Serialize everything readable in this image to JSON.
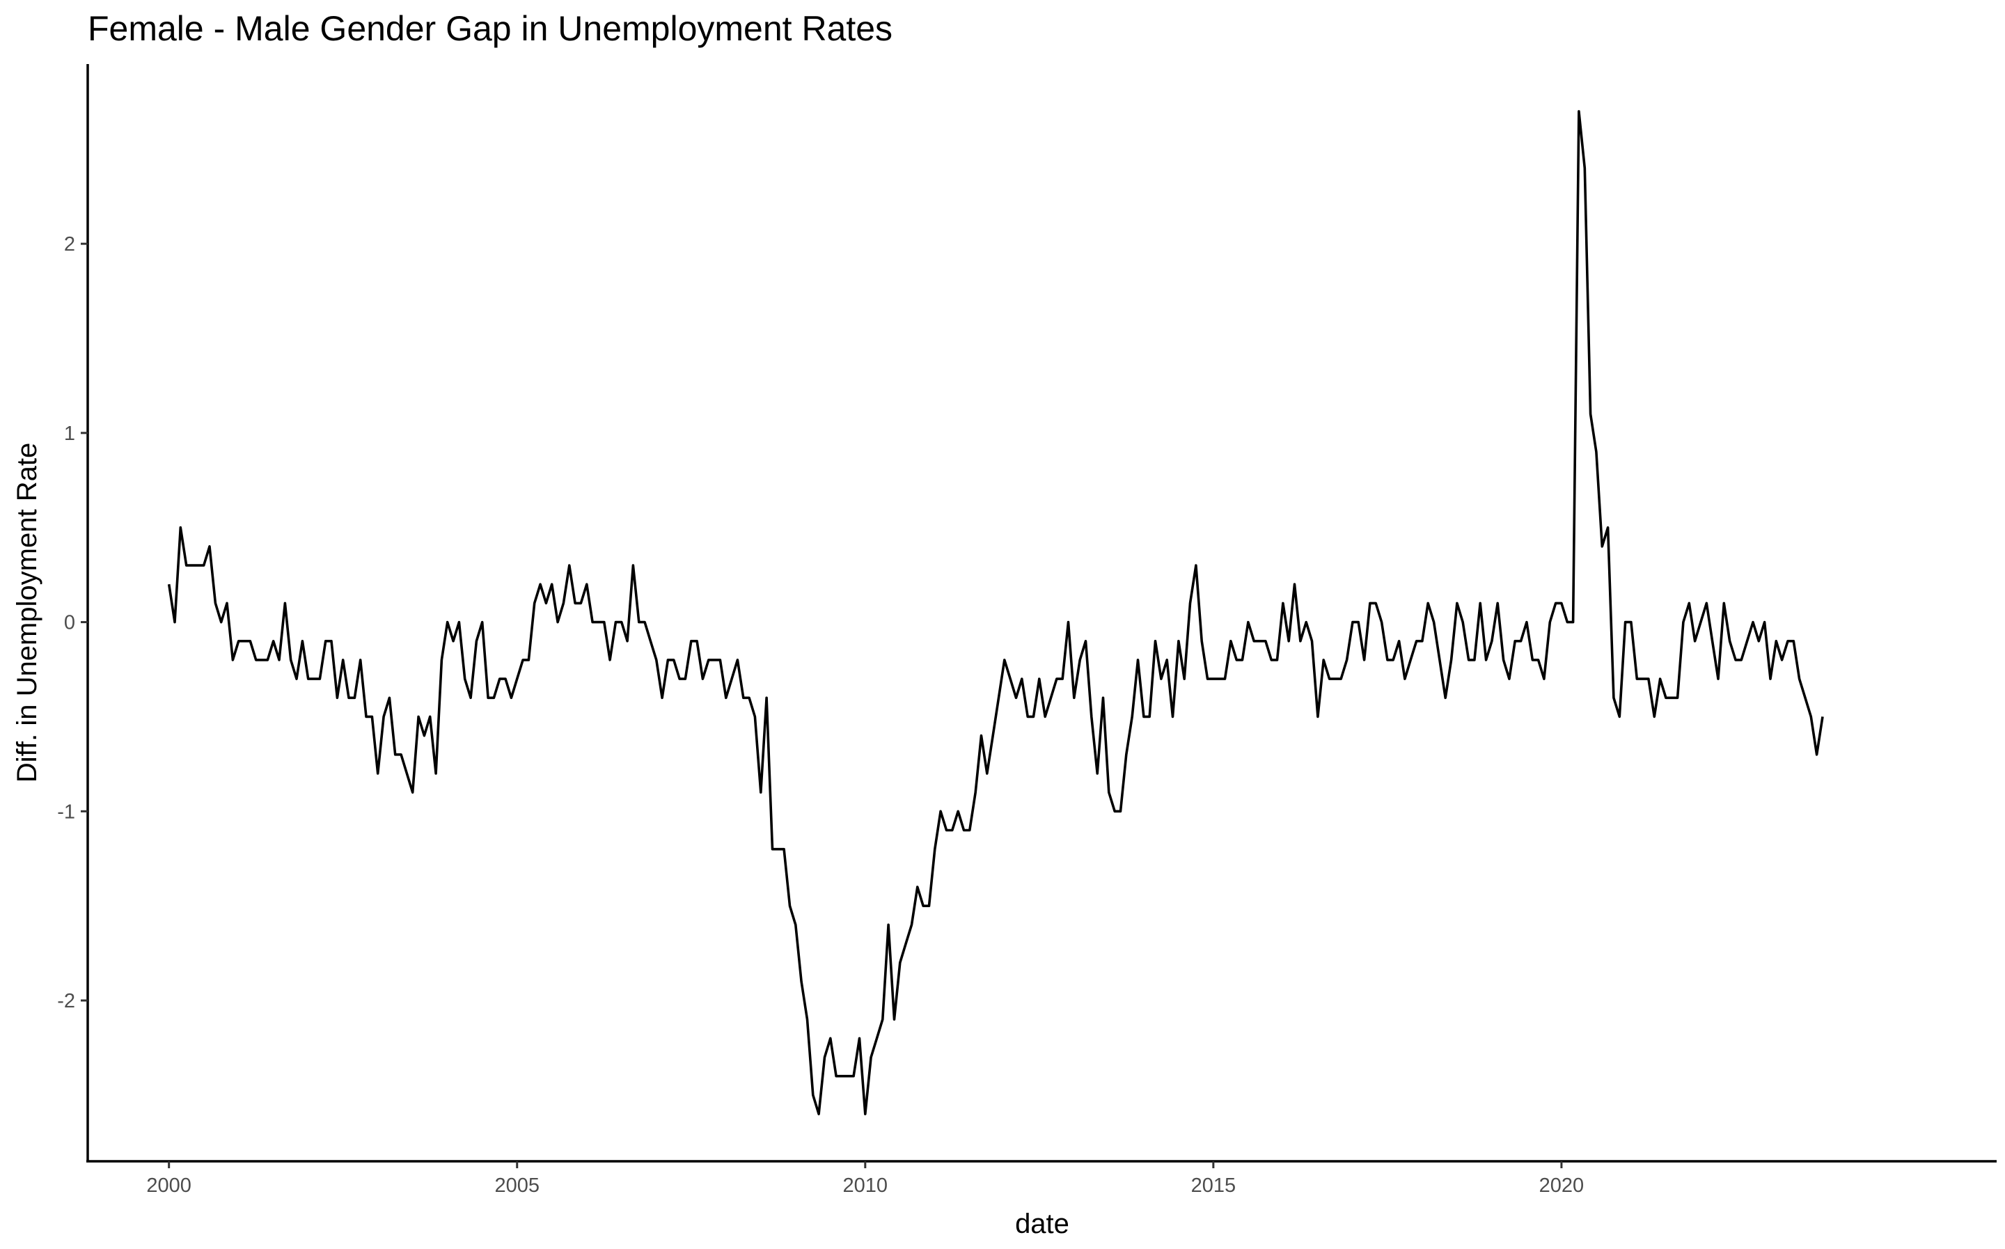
{
  "chart_data": {
    "type": "line",
    "title": "Female - Male Gender Gap in Unemployment Rates",
    "xlabel": "date",
    "ylabel": "Diff. in Unemployment Rate",
    "xlim": [
      "1998-11-01",
      "2026-04-01"
    ],
    "ylim": [
      -2.85,
      2.95
    ],
    "x_ticks": [
      "2000",
      "2005",
      "2010",
      "2015",
      "2020"
    ],
    "y_ticks": [
      -2,
      -1,
      0,
      1,
      2
    ],
    "y_tick_labels": [
      "-2",
      "-1",
      "0",
      "1",
      "2"
    ],
    "grid": false,
    "legend": "none",
    "line_color": "#000000",
    "series": [
      {
        "start": "2000-01",
        "frequency": "monthly",
        "values": [
          0.2,
          0.0,
          0.5,
          0.3,
          0.3,
          0.3,
          0.3,
          0.4,
          0.1,
          0.0,
          0.1,
          -0.2,
          -0.1,
          -0.1,
          -0.1,
          -0.2,
          -0.2,
          -0.2,
          -0.1,
          -0.2,
          0.1,
          -0.2,
          -0.3,
          -0.1,
          -0.3,
          -0.3,
          -0.3,
          -0.1,
          -0.1,
          -0.4,
          -0.2,
          -0.4,
          -0.4,
          -0.2,
          -0.5,
          -0.5,
          -0.8,
          -0.5,
          -0.4,
          -0.7,
          -0.7,
          -0.8,
          -0.9,
          -0.5,
          -0.6,
          -0.5,
          -0.8,
          -0.2,
          0.0,
          -0.1,
          0.0,
          -0.3,
          -0.4,
          -0.1,
          0.0,
          -0.4,
          -0.4,
          -0.3,
          -0.3,
          -0.4,
          -0.3,
          -0.2,
          -0.2,
          0.1,
          0.2,
          0.1,
          0.2,
          0.0,
          0.1,
          0.3,
          0.1,
          0.1,
          0.2,
          0.0,
          0.0,
          0.0,
          -0.2,
          0.0,
          0.0,
          -0.1,
          0.3,
          0.0,
          0.0,
          -0.1,
          -0.2,
          -0.4,
          -0.2,
          -0.2,
          -0.3,
          -0.3,
          -0.1,
          -0.1,
          -0.3,
          -0.2,
          -0.2,
          -0.2,
          -0.4,
          -0.3,
          -0.2,
          -0.4,
          -0.4,
          -0.5,
          -0.9,
          -0.4,
          -1.2,
          -1.2,
          -1.2,
          -1.5,
          -1.6,
          -1.9,
          -2.1,
          -2.5,
          -2.6,
          -2.3,
          -2.2,
          -2.4,
          -2.4,
          -2.4,
          -2.4,
          -2.2,
          -2.6,
          -2.3,
          -2.2,
          -2.1,
          -1.6,
          -2.1,
          -1.8,
          -1.7,
          -1.6,
          -1.4,
          -1.5,
          -1.5,
          -1.2,
          -1.0,
          -1.1,
          -1.1,
          -1.0,
          -1.1,
          -1.1,
          -0.9,
          -0.6,
          -0.8,
          -0.6,
          -0.4,
          -0.2,
          -0.3,
          -0.4,
          -0.3,
          -0.5,
          -0.5,
          -0.3,
          -0.5,
          -0.4,
          -0.3,
          -0.3,
          0.0,
          -0.4,
          -0.2,
          -0.1,
          -0.5,
          -0.8,
          -0.4,
          -0.9,
          -1.0,
          -1.0,
          -0.7,
          -0.5,
          -0.2,
          -0.5,
          -0.5,
          -0.1,
          -0.3,
          -0.2,
          -0.5,
          -0.1,
          -0.3,
          0.1,
          0.3,
          -0.1,
          -0.3,
          -0.3,
          -0.3,
          -0.3,
          -0.1,
          -0.2,
          -0.2,
          0.0,
          -0.1,
          -0.1,
          -0.1,
          -0.2,
          -0.2,
          0.1,
          -0.1,
          0.2,
          -0.1,
          0.0,
          -0.1,
          -0.5,
          -0.2,
          -0.3,
          -0.3,
          -0.3,
          -0.2,
          0.0,
          0.0,
          -0.2,
          0.1,
          0.1,
          0.0,
          -0.2,
          -0.2,
          -0.1,
          -0.3,
          -0.2,
          -0.1,
          -0.1,
          0.1,
          0.0,
          -0.2,
          -0.4,
          -0.2,
          0.1,
          0.0,
          -0.2,
          -0.2,
          0.1,
          -0.2,
          -0.1,
          0.1,
          -0.2,
          -0.3,
          -0.1,
          -0.1,
          0.0,
          -0.2,
          -0.2,
          -0.3,
          0.0,
          0.1,
          0.1,
          0.0,
          0.0,
          2.7,
          2.4,
          1.1,
          0.9,
          0.4,
          0.5,
          -0.4,
          -0.5,
          0.0,
          0.0,
          -0.3,
          -0.3,
          -0.3,
          -0.5,
          -0.3,
          -0.4,
          -0.4,
          -0.4,
          0.0,
          0.1,
          -0.1,
          0.0,
          0.1,
          -0.1,
          -0.3,
          0.1,
          -0.1,
          -0.2,
          -0.2,
          -0.1,
          0.0,
          -0.1,
          0.0,
          -0.3,
          -0.1,
          -0.2,
          -0.1,
          -0.1,
          -0.3,
          -0.4,
          -0.5,
          -0.7,
          -0.5
        ]
      }
    ]
  }
}
